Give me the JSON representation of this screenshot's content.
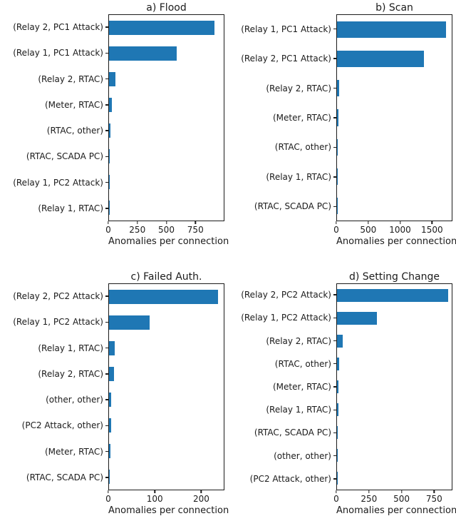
{
  "figure": {
    "bar_color": "#1f77b4",
    "axis_color": "#1b1b1b",
    "background": "#ffffff",
    "xlabel": "Anomalies per connection"
  },
  "chart_data": [
    {
      "type": "bar",
      "orientation": "horizontal",
      "title": "a) Flood",
      "xlabel": "Anomalies per connection",
      "categories": [
        "(Relay 2, PC1 Attack)",
        "(Relay 1, PC1 Attack)",
        "(Relay 2, RTAC)",
        "(Meter, RTAC)",
        "(RTAC, other)",
        "(RTAC, SCADA PC)",
        "(Relay 1, PC2 Attack)",
        "(Relay 1, RTAC)"
      ],
      "values": [
        920,
        590,
        55,
        25,
        12,
        8,
        3,
        1
      ],
      "xticks": [
        0,
        250,
        500,
        750
      ],
      "xlim": [
        0,
        1000
      ],
      "grid": false,
      "legend": null
    },
    {
      "type": "bar",
      "orientation": "horizontal",
      "title": "b) Scan",
      "xlabel": "Anomalies per connection",
      "categories": [
        "(Relay 1, PC1 Attack)",
        "(Relay 2, PC1 Attack)",
        "(Relay 2, RTAC)",
        "(Meter, RTAC)",
        "(RTAC, other)",
        "(Relay 1, RTAC)",
        "(RTAC, SCADA PC)"
      ],
      "values": [
        1730,
        1380,
        30,
        20,
        8,
        4,
        3
      ],
      "xticks": [
        0,
        500,
        1000,
        1500
      ],
      "xlim": [
        0,
        1820
      ],
      "grid": false,
      "legend": null
    },
    {
      "type": "bar",
      "orientation": "horizontal",
      "title": "c) Failed Auth.",
      "xlabel": "Anomalies per connection",
      "categories": [
        "(Relay 2, PC2 Attack)",
        "(Relay 1, PC2 Attack)",
        "(Relay 1, RTAC)",
        "(Relay 2, RTAC)",
        "(other, other)",
        "(PC2 Attack, other)",
        "(Meter, RTAC)",
        "(RTAC, SCADA PC)"
      ],
      "values": [
        238,
        88,
        13,
        11,
        5,
        5,
        3,
        1
      ],
      "xticks": [
        0,
        100,
        200
      ],
      "xlim": [
        0,
        250
      ],
      "grid": false,
      "legend": null
    },
    {
      "type": "bar",
      "orientation": "horizontal",
      "title": "d) Setting Change",
      "xlabel": "Anomalies per connection",
      "categories": [
        "(Relay 2, PC2 Attack)",
        "(Relay 1, PC2 Attack)",
        "(Relay 2, RTAC)",
        "(RTAC, other)",
        "(Meter, RTAC)",
        "(Relay 1, RTAC)",
        "(RTAC, SCADA PC)",
        "(other, other)",
        "(PC2 Attack, other)"
      ],
      "values": [
        865,
        310,
        45,
        15,
        13,
        11,
        4,
        2,
        1
      ],
      "xticks": [
        0,
        250,
        500,
        750
      ],
      "xlim": [
        0,
        890
      ],
      "grid": false,
      "legend": null
    }
  ]
}
